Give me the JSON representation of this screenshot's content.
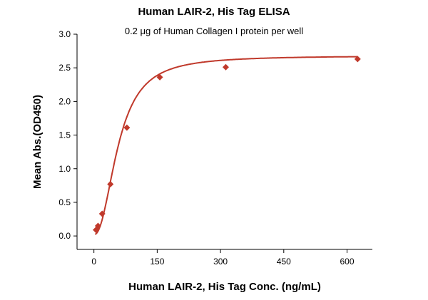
{
  "chart_data": {
    "type": "scatter",
    "title": "Human LAIR-2, His Tag ELISA",
    "subtitle": "0.2 μg of Human Collagen I protein per well",
    "xlabel": "Human LAIR-2, His Tag Conc. (ng/mL)",
    "ylabel": "Mean Abs.(OD450)",
    "xlim": [
      -40,
      660
    ],
    "ylim": [
      -0.2,
      3.0
    ],
    "xticks": [
      0,
      150,
      300,
      450,
      600
    ],
    "yticks": [
      0.0,
      0.5,
      1.0,
      1.5,
      2.0,
      2.5,
      3.0
    ],
    "grid": false,
    "legend": "none",
    "series": [
      {
        "marker": "diamond",
        "color": "#c0392b",
        "x": [
          4.88,
          9.77,
          19.53,
          39.06,
          78.13,
          156.25,
          312.5,
          625
        ],
        "y": [
          0.09,
          0.15,
          0.33,
          0.77,
          1.61,
          2.36,
          2.51,
          2.63
        ],
        "fit": "4PL"
      }
    ]
  }
}
